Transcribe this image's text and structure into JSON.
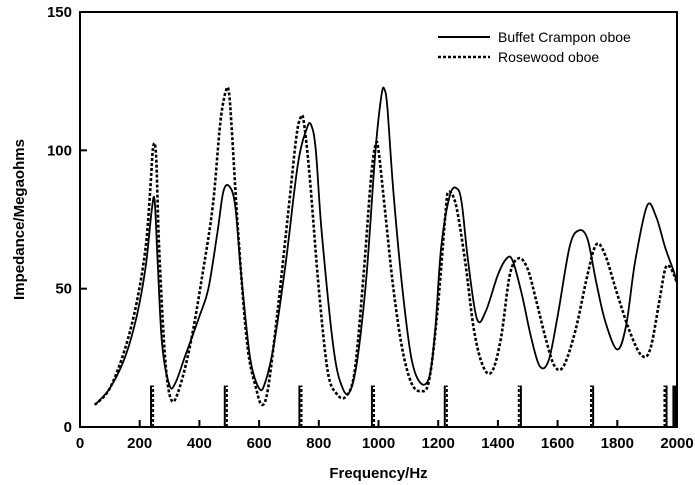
{
  "chart_data": {
    "type": "line",
    "title": "",
    "xlabel": "Frequency/Hz",
    "ylabel": "Impedance/Megaohms",
    "xlim": [
      0,
      2000
    ],
    "ylim": [
      0,
      150
    ],
    "xticks": [
      0,
      200,
      400,
      600,
      800,
      1000,
      1200,
      1400,
      1600,
      1800,
      2000
    ],
    "yticks": [
      0,
      50,
      100,
      150
    ],
    "grid": false,
    "legend_position": "top-right",
    "series": [
      {
        "name": "Buffet Crampon oboe",
        "style": "solid",
        "color": "#000000",
        "x": [
          50,
          100,
          150,
          190,
          220,
          240,
          250,
          260,
          275,
          300,
          320,
          350,
          400,
          430,
          460,
          480,
          500,
          520,
          540,
          570,
          600,
          620,
          650,
          690,
          730,
          760,
          775,
          790,
          810,
          850,
          880,
          905,
          930,
          960,
          990,
          1010,
          1020,
          1030,
          1050,
          1080,
          1110,
          1140,
          1170,
          1190,
          1210,
          1240,
          1265,
          1280,
          1300,
          1330,
          1360,
          1400,
          1430,
          1450,
          1480,
          1510,
          1540,
          1570,
          1600,
          1640,
          1670,
          1700,
          1730,
          1760,
          1800,
          1830,
          1860,
          1900,
          1930,
          1960,
          1990,
          2000
        ],
        "values": [
          8,
          14,
          25,
          40,
          58,
          78,
          82,
          60,
          30,
          15,
          16,
          25,
          40,
          50,
          70,
          85,
          87,
          80,
          55,
          25,
          14,
          16,
          30,
          60,
          95,
          108,
          109,
          100,
          70,
          28,
          14,
          13,
          25,
          55,
          100,
          120,
          122,
          115,
          85,
          50,
          25,
          16,
          18,
          35,
          65,
          84,
          86,
          80,
          60,
          39,
          42,
          55,
          61,
          60,
          48,
          33,
          22,
          24,
          40,
          65,
          71,
          68,
          52,
          38,
          28,
          37,
          60,
          80,
          76,
          65,
          56,
          52
        ]
      },
      {
        "name": "Rosewood oboe",
        "style": "dotted",
        "color": "#000000",
        "x": [
          50,
          100,
          150,
          190,
          220,
          235,
          245,
          255,
          265,
          285,
          305,
          330,
          370,
          410,
          445,
          470,
          490,
          500,
          510,
          530,
          560,
          590,
          610,
          630,
          660,
          700,
          725,
          740,
          750,
          770,
          800,
          830,
          860,
          890,
          920,
          950,
          975,
          990,
          1000,
          1020,
          1050,
          1080,
          1110,
          1140,
          1170,
          1200,
          1225,
          1235,
          1260,
          1290,
          1320,
          1350,
          1380,
          1410,
          1440,
          1470,
          1500,
          1530,
          1560,
          1590,
          1620,
          1660,
          1700,
          1730,
          1760,
          1800,
          1840,
          1880,
          1910,
          1940,
          1960,
          1975,
          1990,
          2000
        ],
        "values": [
          8,
          14,
          28,
          45,
          65,
          85,
          101,
          98,
          65,
          25,
          10,
          13,
          30,
          55,
          80,
          110,
          122,
          120,
          105,
          70,
          30,
          14,
          8,
          14,
          40,
          80,
          105,
          112,
          110,
          90,
          50,
          20,
          12,
          11,
          20,
          55,
          90,
          102,
          100,
          80,
          50,
          28,
          16,
          13,
          17,
          45,
          78,
          85,
          80,
          60,
          35,
          22,
          20,
          32,
          55,
          61,
          57,
          45,
          32,
          22,
          22,
          35,
          55,
          66,
          62,
          48,
          35,
          26,
          28,
          45,
          57,
          58,
          55,
          52
        ]
      }
    ],
    "resonance_markers": {
      "description_style": "short vertical bars at bottom of plot",
      "height_units": 15,
      "groups": [
        {
          "x": [
            238,
            245
          ],
          "styles": [
            "solid",
            "dotted"
          ]
        },
        {
          "x": [
            485,
            492
          ],
          "styles": [
            "solid",
            "dotted"
          ]
        },
        {
          "x": [
            735,
            742
          ],
          "styles": [
            "solid",
            "dotted"
          ]
        },
        {
          "x": [
            978,
            985
          ],
          "styles": [
            "solid",
            "dotted"
          ]
        },
        {
          "x": [
            1222,
            1229
          ],
          "styles": [
            "solid",
            "dotted"
          ]
        },
        {
          "x": [
            1470,
            1477
          ],
          "styles": [
            "dotted",
            "solid"
          ]
        },
        {
          "x": [
            1712,
            1719
          ],
          "styles": [
            "dotted",
            "solid"
          ]
        },
        {
          "x": [
            1958,
            1965
          ],
          "styles": [
            "dotted",
            "solid"
          ]
        },
        {
          "x": [
            1988,
            1994
          ],
          "styles": [
            "solid",
            "solid"
          ]
        }
      ]
    }
  }
}
